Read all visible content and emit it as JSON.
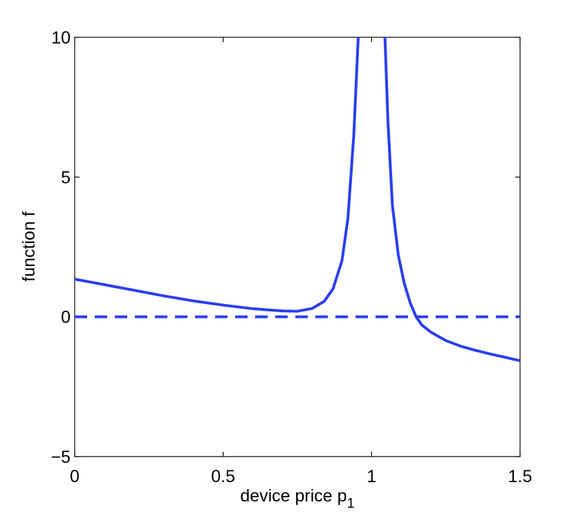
{
  "chart_data": {
    "type": "line",
    "title": "",
    "xlabel": "device price p",
    "xlabel_subscript": "1",
    "ylabel": "function f",
    "xlim": [
      0,
      1.5
    ],
    "ylim": [
      -5,
      10
    ],
    "xticks": [
      0,
      0.5,
      1,
      1.5
    ],
    "xtick_labels": [
      "0",
      "0.5",
      "1",
      "1.5"
    ],
    "yticks": [
      -5,
      0,
      5,
      10
    ],
    "ytick_labels": [
      "−5",
      "0",
      "5",
      "10"
    ],
    "grid": false,
    "legend": "none",
    "series": [
      {
        "style": "solid",
        "color": "#2a3ef0",
        "x": [
          0,
          0.1,
          0.2,
          0.3,
          0.4,
          0.5,
          0.6,
          0.7,
          0.75,
          0.8,
          0.84,
          0.87,
          0.9,
          0.92,
          0.94,
          0.955
        ],
        "y": [
          1.35,
          1.15,
          0.95,
          0.75,
          0.57,
          0.42,
          0.29,
          0.21,
          0.2,
          0.3,
          0.55,
          1.0,
          2.0,
          3.5,
          6.5,
          10
        ]
      },
      {
        "style": "solid",
        "color": "#2a3ef0",
        "x": [
          1.045,
          1.055,
          1.07,
          1.09,
          1.11,
          1.13,
          1.15,
          1.17,
          1.2,
          1.25,
          1.3,
          1.35,
          1.4,
          1.45,
          1.5
        ],
        "y": [
          10,
          7.0,
          4.0,
          2.2,
          1.2,
          0.5,
          0.0,
          -0.3,
          -0.55,
          -0.85,
          -1.05,
          -1.2,
          -1.33,
          -1.45,
          -1.57
        ]
      },
      {
        "style": "dashed",
        "color": "#2a3ef0",
        "x": [
          0,
          1.5
        ],
        "y": [
          0,
          0
        ]
      }
    ]
  }
}
